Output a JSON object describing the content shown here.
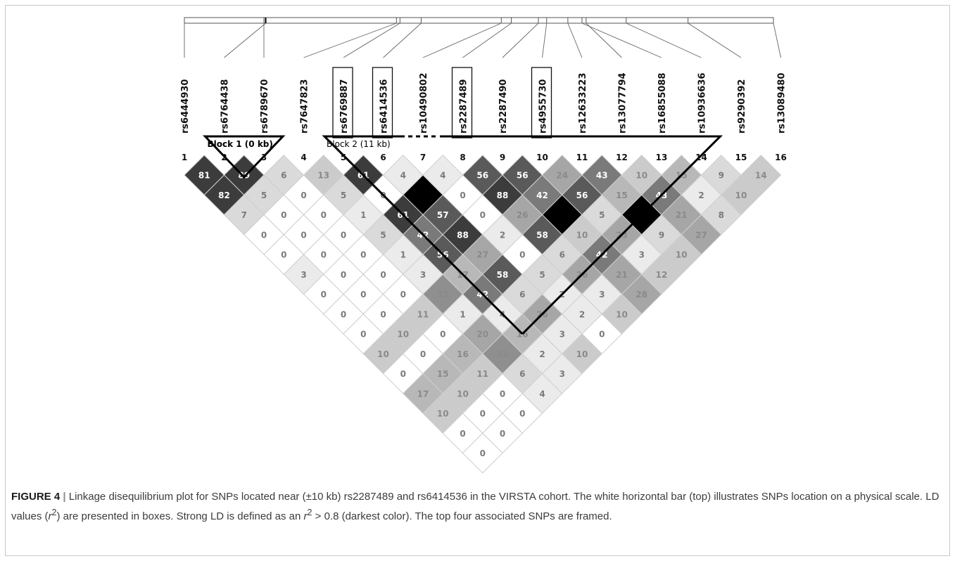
{
  "chart_data": {
    "type": "heatmap",
    "subtype": "linkage-disequilibrium-triangle",
    "measure": "r2 x 100",
    "snps": [
      "rs6444930",
      "rs6764438",
      "rs6789670",
      "rs7647823",
      "rs6769887",
      "rs6414536",
      "rs10490802",
      "rs2287489",
      "rs2287490",
      "rs4955730",
      "rs12633223",
      "rs13077794",
      "rs16855088",
      "rs10936636",
      "rs9290392",
      "rs13089480"
    ],
    "snp_indices": [
      "1",
      "2",
      "3",
      "4",
      "5",
      "6",
      "7",
      "8",
      "9",
      "10",
      "11",
      "12",
      "13",
      "14",
      "15",
      "16"
    ],
    "framed_snps": [
      "rs6769887",
      "rs6414536",
      "rs2287489",
      "rs4955730"
    ],
    "physical_position_fraction": [
      0.0,
      0.138,
      0.135,
      0.36,
      0.366,
      0.402,
      0.538,
      0.555,
      0.601,
      0.615,
      0.651,
      0.682,
      0.675,
      0.75,
      0.855,
      1.0
    ],
    "blocks": [
      {
        "label": "Block 1 (0 kb)",
        "start_snp": 2,
        "end_snp": 3
      },
      {
        "label": "Block 2 (11 kb)",
        "start_snp": 5,
        "end_snp": 14
      }
    ],
    "ld_rows": [
      [
        81,
        89,
        6,
        13,
        61,
        4,
        4,
        56,
        56,
        24,
        43,
        10,
        15,
        9,
        14
      ],
      [
        82,
        5,
        0,
        5,
        0,
        100,
        0,
        88,
        42,
        56,
        15,
        43,
        2,
        10
      ],
      [
        7,
        0,
        0,
        1,
        61,
        57,
        0,
        26,
        100,
        5,
        100,
        21,
        8
      ],
      [
        0,
        0,
        0,
        5,
        42,
        88,
        2,
        58,
        10,
        23,
        9,
        27
      ],
      [
        0,
        0,
        0,
        1,
        56,
        27,
        0,
        6,
        42,
        3,
        10
      ],
      [
        3,
        0,
        0,
        3,
        17,
        58,
        5,
        26,
        21,
        12
      ],
      [
        0,
        0,
        0,
        32,
        42,
        6,
        2,
        3,
        28
      ],
      [
        0,
        0,
        11,
        1,
        4,
        26,
        2,
        10
      ],
      [
        0,
        10,
        0,
        20,
        16,
        3,
        0
      ],
      [
        10,
        0,
        16,
        31,
        2,
        10
      ],
      [
        0,
        15,
        11,
        6,
        3
      ],
      [
        17,
        10,
        0,
        4
      ],
      [
        10,
        0,
        0
      ],
      [
        0,
        0
      ],
      [
        0
      ]
    ],
    "ld_blank_value": 100,
    "colors": {
      "strong": "#000000",
      "frame": "#111111",
      "light": "#ffffff"
    }
  },
  "caption": {
    "label": "FIGURE 4",
    "separator": "|",
    "text_1": " Linkage disequilibrium plot for SNPs located near (±10 kb) rs2287489 and rs6414536 in the VIRSTA cohort. The white horizontal bar (top) illustrates SNPs location on a physical scale. LD values (",
    "r": "r",
    "sup": "2",
    "text_2": ") are presented in boxes. Strong LD is defined as an ",
    "r_b": "r",
    "sup_b": "2",
    "text_3": " > 0.8 (darkest color). The top four associated SNPs are framed."
  }
}
